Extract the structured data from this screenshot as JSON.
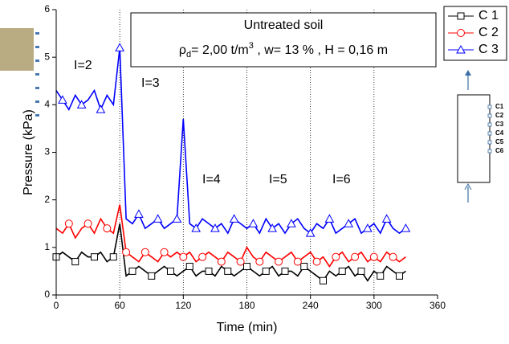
{
  "chart_data": {
    "type": "line",
    "title": "Untreated soil",
    "subtitle_parts": [
      "ρ",
      "d",
      "= 2,00 t/m",
      "3",
      " , w= 13 % , H = 0,16 m"
    ],
    "x_label": "Time (min)",
    "y_label": "Pressure (kPa)",
    "annotations": [
      "I=2",
      "I=3",
      "I=4",
      "I=5",
      "I=6"
    ],
    "x": [
      0,
      6,
      12,
      18,
      24,
      30,
      36,
      42,
      48,
      54,
      60,
      66,
      72,
      78,
      84,
      90,
      96,
      102,
      108,
      114,
      120,
      126,
      132,
      138,
      144,
      150,
      156,
      162,
      168,
      174,
      180,
      186,
      192,
      198,
      204,
      210,
      216,
      222,
      228,
      234,
      240,
      246,
      252,
      258,
      264,
      270,
      276,
      282,
      288,
      294,
      300,
      306,
      312,
      318,
      324,
      330
    ],
    "series": [
      {
        "name": "C 1",
        "color": "#000000",
        "marker": "square",
        "values": [
          0.8,
          0.9,
          0.8,
          0.7,
          0.9,
          0.8,
          0.8,
          0.9,
          0.7,
          0.8,
          1.5,
          0.4,
          0.5,
          0.6,
          0.5,
          0.4,
          0.5,
          0.6,
          0.5,
          0.4,
          0.5,
          0.6,
          0.4,
          0.5,
          0.5,
          0.4,
          0.6,
          0.5,
          0.4,
          0.5,
          0.6,
          0.5,
          0.4,
          0.5,
          0.6,
          0.4,
          0.5,
          0.5,
          0.4,
          0.6,
          0.5,
          0.4,
          0.3,
          0.5,
          0.4,
          0.5,
          0.6,
          0.4,
          0.5,
          0.3,
          0.5,
          0.4,
          0.6,
          0.5,
          0.4,
          0.5
        ]
      },
      {
        "name": "C 2",
        "color": "#ff0000",
        "marker": "circle",
        "values": [
          1.4,
          1.3,
          1.5,
          1.2,
          1.4,
          1.5,
          1.3,
          1.6,
          1.4,
          1.3,
          1.9,
          0.9,
          0.8,
          0.7,
          0.9,
          0.8,
          0.7,
          0.9,
          0.8,
          0.9,
          0.8,
          0.9,
          0.7,
          0.8,
          0.9,
          0.8,
          0.7,
          0.9,
          0.8,
          0.7,
          1.0,
          0.8,
          0.7,
          0.9,
          0.8,
          0.7,
          0.8,
          0.9,
          0.7,
          0.8,
          0.9,
          0.7,
          0.8,
          0.6,
          0.8,
          0.9,
          0.7,
          0.8,
          0.9,
          0.7,
          0.8,
          0.7,
          0.9,
          0.8,
          0.7,
          0.8
        ]
      },
      {
        "name": "C 3",
        "color": "#0000ff",
        "marker": "triangle",
        "values": [
          4.3,
          4.1,
          3.9,
          4.2,
          4.0,
          4.1,
          4.3,
          3.9,
          4.2,
          4.0,
          5.2,
          1.6,
          1.5,
          1.7,
          1.4,
          1.5,
          1.6,
          1.4,
          1.5,
          1.6,
          3.7,
          1.5,
          1.4,
          1.6,
          1.5,
          1.4,
          1.5,
          1.3,
          1.6,
          1.5,
          1.4,
          1.5,
          1.3,
          1.6,
          1.4,
          1.5,
          1.3,
          1.5,
          1.6,
          1.4,
          1.3,
          1.5,
          1.4,
          1.6,
          1.3,
          1.4,
          1.5,
          1.6,
          1.3,
          1.4,
          1.5,
          1.3,
          1.6,
          1.4,
          1.3,
          1.4
        ]
      }
    ],
    "xlim": [
      0,
      360
    ],
    "xticks": [
      0,
      60,
      120,
      180,
      240,
      300,
      360
    ],
    "ylim": [
      0,
      6
    ],
    "yticks": [
      0,
      1,
      2,
      3,
      4,
      5,
      6
    ],
    "vgrid": true
  },
  "diagram": {
    "labels": [
      "C1",
      "C2",
      "C3",
      "C4",
      "C5",
      "C6"
    ]
  }
}
